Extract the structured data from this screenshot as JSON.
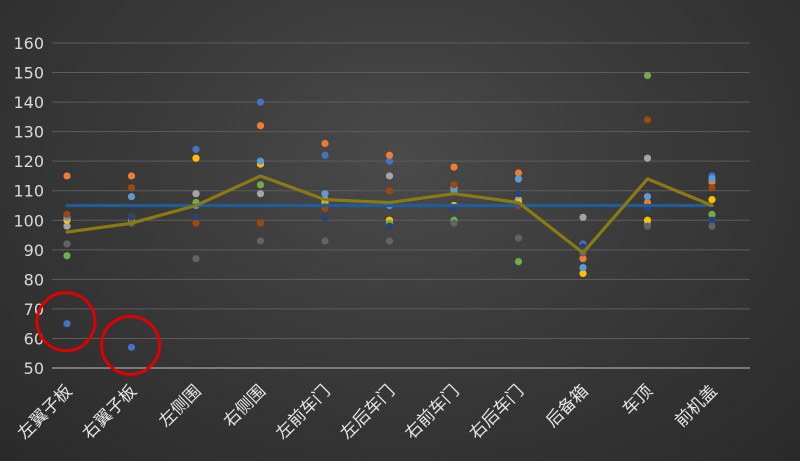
{
  "chart_data": {
    "type": "scatter",
    "title": "",
    "xlabel": "",
    "ylabel": "",
    "ylim": [
      50,
      160
    ],
    "yticks": [
      50,
      60,
      70,
      80,
      90,
      100,
      110,
      120,
      130,
      140,
      150,
      160
    ],
    "grid": true,
    "categories": [
      "左翼子板",
      "右翼子板",
      "左侧围",
      "右侧围",
      "左前车门",
      "左后车门",
      "右前车门",
      "右后车门",
      "后备箱",
      "车顶",
      "前机盖"
    ],
    "series": [
      {
        "color": "#4472c4",
        "values": [
          65,
          57,
          124,
          140,
          122,
          120,
          111,
          114,
          92,
          99,
          115
        ]
      },
      {
        "color": "#ed7d31",
        "values": [
          115,
          115,
          106,
          132,
          126,
          122,
          118,
          116,
          87,
          106,
          113
        ]
      },
      {
        "color": "#a5a5a5",
        "values": [
          98,
          100,
          109,
          109,
          107,
          115,
          111,
          107,
          101,
          121,
          100
        ]
      },
      {
        "color": "#ffc000",
        "values": [
          100,
          101,
          121,
          119,
          106,
          100,
          105,
          106,
          82,
          100,
          107
        ]
      },
      {
        "color": "#5b9bd5",
        "values": [
          101,
          108,
          105,
          120,
          109,
          105,
          110,
          114,
          84,
          108,
          114
        ]
      },
      {
        "color": "#70ad47",
        "values": [
          88,
          100,
          106,
          112,
          105,
          99,
          100,
          86,
          90,
          149,
          102
        ]
      },
      {
        "color": "#264478",
        "values": [
          102,
          101,
          101,
          115,
          101,
          98,
          104,
          109,
          91,
          104,
          100
        ]
      },
      {
        "color": "#9e480e",
        "values": [
          102,
          111,
          99,
          99,
          104,
          110,
          112,
          105,
          89,
          134,
          111
        ]
      },
      {
        "color": "#636363",
        "values": [
          92,
          99,
          87,
          93,
          93,
          93,
          99,
          94,
          89,
          98,
          98
        ]
      }
    ],
    "lines": [
      {
        "color": "#1f5c99",
        "values": [
          105,
          105,
          105,
          105,
          105,
          105,
          105,
          105,
          105,
          105,
          105
        ]
      },
      {
        "color": "#8b7a12",
        "values": [
          96,
          99,
          105,
          115,
          107,
          106,
          109,
          106,
          89,
          114,
          105
        ]
      }
    ],
    "annotations": [
      {
        "shape": "circle",
        "color": "#e00000",
        "category": "左翼子板",
        "y": 65
      },
      {
        "shape": "circle",
        "color": "#e00000",
        "category": "右翼子板",
        "y": 57
      }
    ]
  }
}
